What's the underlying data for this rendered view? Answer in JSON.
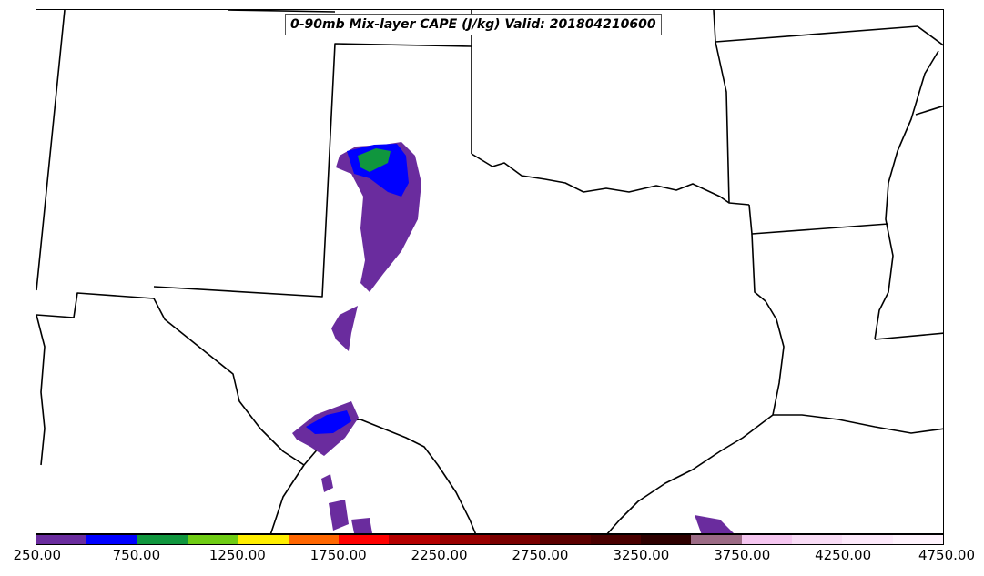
{
  "title": "0-90mb Mix-layer CAPE (J/kg) Valid: 201804210600",
  "colorbar": {
    "colors": [
      "#6a2c9e",
      "#0000ff",
      "#10963e",
      "#6fcc14",
      "#ffee00",
      "#ff6600",
      "#ff0000",
      "#b50000",
      "#990000",
      "#7a0000",
      "#5c0000",
      "#4a0000",
      "#2e0000",
      "#9c6b85",
      "#f5c6f0",
      "#f9dcf6",
      "#fde9fb",
      "#fff3fd"
    ],
    "labels": [
      "250.00",
      "750.00",
      "1250.00",
      "1750.00",
      "2250.00",
      "2750.00",
      "3250.00",
      "3750.00",
      "4250.00",
      "4750.00"
    ],
    "min": 250,
    "max": 4750
  },
  "legend_items": [
    "250.00",
    "750.00",
    "1250.00",
    "1750.00",
    "2250.00",
    "2750.00",
    "3250.00",
    "3750.00",
    "4250.00",
    "4750.00"
  ]
}
